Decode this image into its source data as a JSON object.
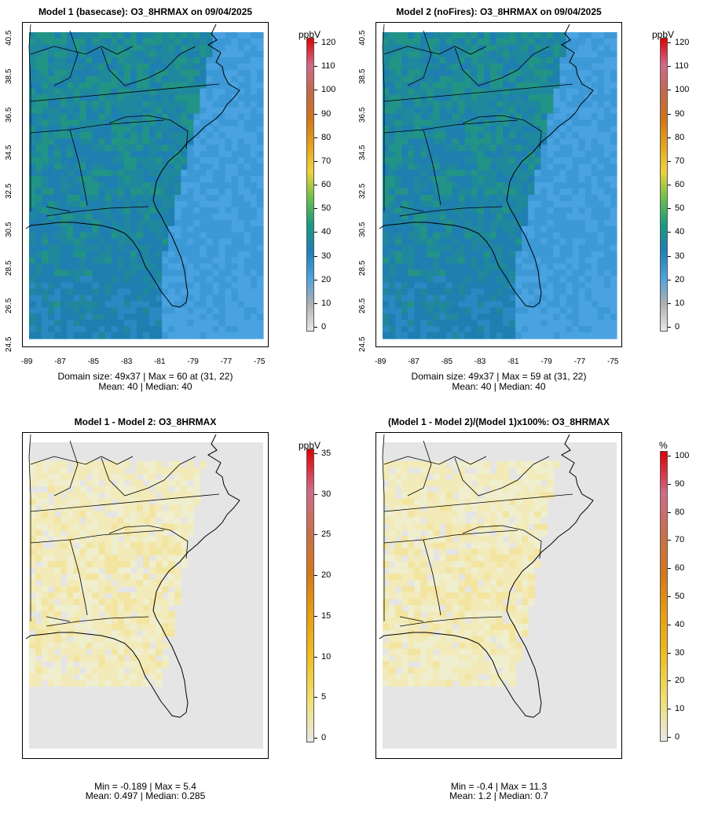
{
  "panels": [
    {
      "id": "model1",
      "title": "Model 1 (basecase): O3_8HRMAX on 09/04/2025",
      "caption_line1": "Domain size: 49x37 | Max = 60 at (31, 22)",
      "caption_line2": "Mean: 40 |  Median: 40",
      "colorbar_unit": "ppbV",
      "colorbar_ticks": [
        "120",
        "110",
        "100",
        "90",
        "80",
        "70",
        "60",
        "50",
        "40",
        "30",
        "20",
        "10",
        "0"
      ],
      "x_ticks": [
        "-89",
        "-87",
        "-85",
        "-83",
        "-81",
        "-79",
        "-77",
        "-75"
      ],
      "y_ticks": [
        "40.5",
        "38.5",
        "36.5",
        "34.5",
        "32.5",
        "30.5",
        "28.5",
        "26.5",
        "24.5"
      ],
      "field": "ozone",
      "colormap": "ozone"
    },
    {
      "id": "model2",
      "title": "Model 2 (noFires): O3_8HRMAX on 09/04/2025",
      "caption_line1": "Domain size: 49x37 | Max = 59 at (31, 22)",
      "caption_line2": "Mean: 40 |  Median: 40",
      "colorbar_unit": "ppbV",
      "colorbar_ticks": [
        "120",
        "110",
        "100",
        "90",
        "80",
        "70",
        "60",
        "50",
        "40",
        "30",
        "20",
        "10",
        "0"
      ],
      "x_ticks": [
        "-89",
        "-87",
        "-85",
        "-83",
        "-81",
        "-79",
        "-77",
        "-75"
      ],
      "y_ticks": [
        "40.5",
        "38.5",
        "36.5",
        "34.5",
        "32.5",
        "30.5",
        "28.5",
        "26.5",
        "24.5"
      ],
      "field": "ozone",
      "colormap": "ozone"
    },
    {
      "id": "diff",
      "title": "Model 1 - Model 2: O3_8HRMAX",
      "caption_line1": "Min = -0.189 | Max = 5.4",
      "caption_line2": "Mean: 0.497 |  Median: 0.285",
      "colorbar_unit": "ppbV",
      "colorbar_ticks": [
        "35",
        "30",
        "25",
        "20",
        "15",
        "10",
        "5",
        "0"
      ],
      "field": "diff",
      "colormap": "diff"
    },
    {
      "id": "pct",
      "title": "(Model 1 - Model 2)/(Model 1)x100%: O3_8HRMAX",
      "caption_line1": "Min = -0.4 | Max = 11.3",
      "caption_line2": "Mean: 1.2 |  Median: 0.7",
      "colorbar_unit": "%",
      "colorbar_ticks": [
        "100",
        "90",
        "80",
        "70",
        "60",
        "50",
        "40",
        "30",
        "20",
        "10",
        "0"
      ],
      "field": "diff",
      "colormap": "pct"
    }
  ],
  "colors": {
    "ocean_blue": "#4aa3e0",
    "land_teal": "#1f86b4",
    "land_green": "#2a9a76",
    "grey_bg": "#e5e5e5",
    "diff_yellow": "#f2ecb8",
    "colorbar_ozone": [
      "#e8e8e8",
      "#b0b0b0",
      "#4aa3e0",
      "#1f7fb6",
      "#1a9a80",
      "#6ec24a",
      "#f0d23a",
      "#e6a21a",
      "#d2741a",
      "#c2684d",
      "#d06b8a",
      "#e00000"
    ],
    "colorbar_diff": [
      "#e8e8e8",
      "#f0e070",
      "#f0c020",
      "#e8a010",
      "#d87818",
      "#c8704a",
      "#d06b8a",
      "#e00000"
    ]
  }
}
